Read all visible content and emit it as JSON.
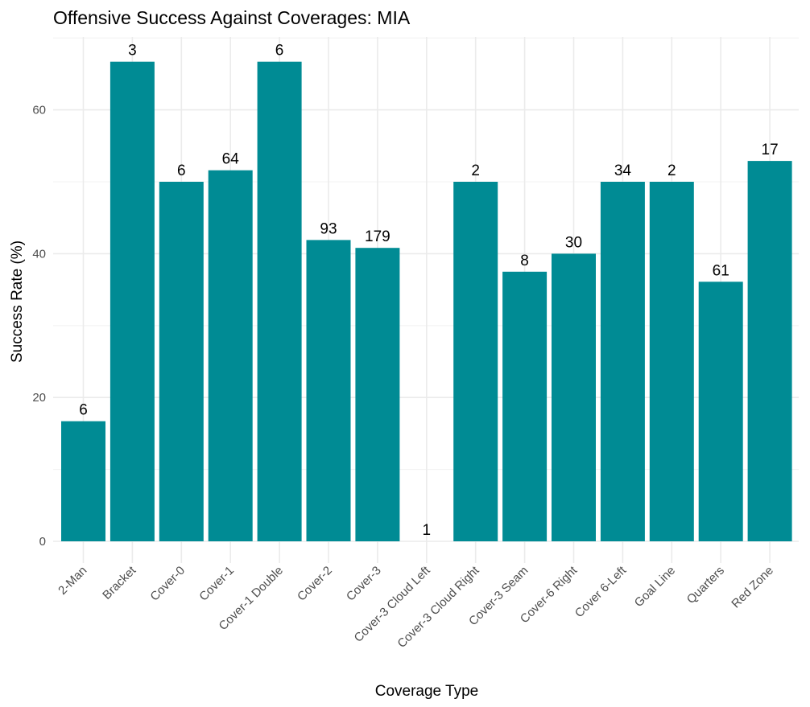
{
  "chart_data": {
    "type": "bar",
    "title": "Offensive Success Against Coverages: MIA",
    "xlabel": "Coverage Type",
    "ylabel": "Success Rate (%)",
    "categories": [
      "2-Man",
      "Bracket",
      "Cover-0",
      "Cover-1",
      "Cover-1 Double",
      "Cover-2",
      "Cover-3",
      "Cover-3 Cloud Left",
      "Cover-3 Cloud Right",
      "Cover-3 Seam",
      "Cover-6 Right",
      "Cover 6-Left",
      "Goal Line",
      "Quarters",
      "Red Zone"
    ],
    "values": [
      16.7,
      66.7,
      50.0,
      51.6,
      66.7,
      41.9,
      40.8,
      0.0,
      50.0,
      37.5,
      40.0,
      50.0,
      50.0,
      36.1,
      52.9
    ],
    "labels": [
      "6",
      "3",
      "6",
      "64",
      "6",
      "93",
      "179",
      "1",
      "2",
      "8",
      "30",
      "34",
      "2",
      "61",
      "17"
    ],
    "ylim": [
      0,
      70
    ],
    "yticks": [
      0,
      20,
      40,
      60
    ],
    "bar_color": "#008B94",
    "grid": true,
    "legend": "none"
  }
}
